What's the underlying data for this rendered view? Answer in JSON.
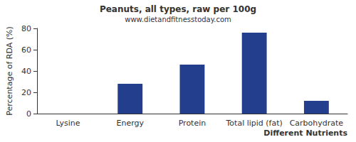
{
  "chart_data": {
    "type": "bar",
    "title": "Peanuts, all types, raw per 100g",
    "subtitle": "www.dietandfitnesstoday.com",
    "x_label": "Different Nutrients",
    "y_label": "Percentage of RDA (%)",
    "categories": [
      "Lysine",
      "Energy",
      "Protein",
      "Total lipid (fat)",
      "Carbohydrate"
    ],
    "values": [
      0,
      28,
      46,
      76,
      12
    ],
    "color": "#233e8c",
    "ylim": [
      0,
      80
    ],
    "yticks": [
      0,
      20,
      40,
      60,
      80
    ],
    "grid": false
  }
}
